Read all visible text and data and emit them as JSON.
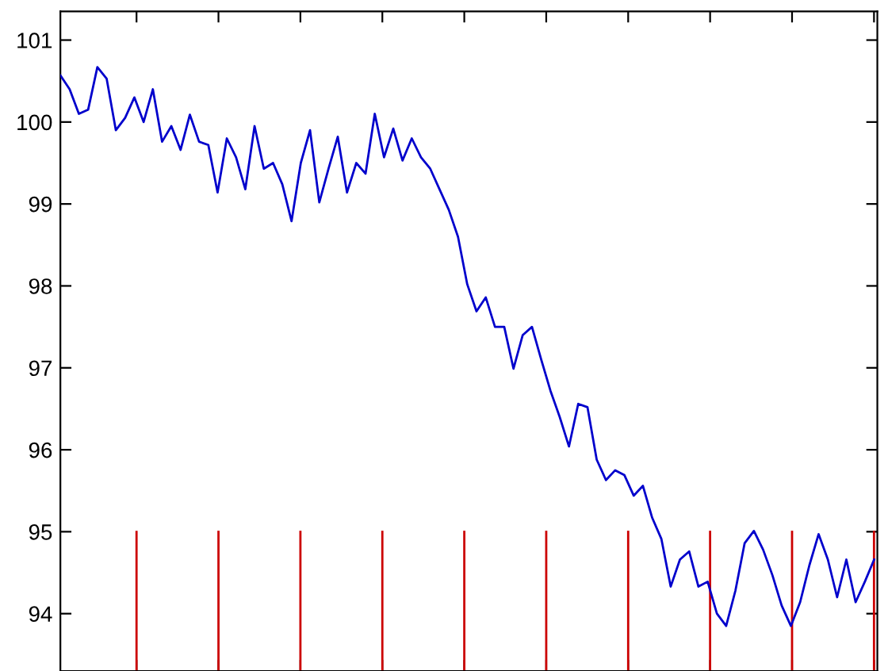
{
  "chart_data": {
    "type": "line",
    "ylim": [
      93.3,
      101.35
    ],
    "yticks": [
      94,
      95,
      96,
      97,
      98,
      99,
      100,
      101
    ],
    "tick_labels": "y",
    "categories": [
      null,
      null,
      null,
      null,
      null,
      null,
      null,
      null,
      null,
      null,
      null,
      null,
      null,
      null,
      null,
      null,
      null,
      null,
      null,
      null,
      null,
      null,
      null,
      null,
      null,
      null,
      null,
      null,
      null,
      null,
      null,
      null,
      null,
      null,
      null,
      null,
      null,
      null,
      null,
      null,
      null,
      null,
      null,
      null,
      null,
      null,
      null,
      null,
      null,
      null,
      null,
      null,
      null,
      null,
      null,
      null,
      null,
      null,
      null,
      null,
      null,
      null,
      null,
      null,
      null,
      null,
      null,
      null,
      null,
      null,
      null,
      null,
      null,
      null,
      null,
      null,
      null,
      null,
      null,
      null,
      null,
      null,
      null,
      null,
      null,
      null,
      null,
      null,
      null
    ],
    "series": [
      {
        "color": "#0000cc",
        "values": [
          100.57,
          100.4,
          100.1,
          100.15,
          100.67,
          100.53,
          99.9,
          100.05,
          100.3,
          100.0,
          100.4,
          99.76,
          99.95,
          99.66,
          100.09,
          99.76,
          99.72,
          99.14,
          99.8,
          99.57,
          99.18,
          99.95,
          99.43,
          99.5,
          99.24,
          98.79,
          99.5,
          99.9,
          99.02,
          99.43,
          99.82,
          99.14,
          99.5,
          99.37,
          100.1,
          99.57,
          99.92,
          99.53,
          99.8,
          99.57,
          99.43,
          99.18,
          98.93,
          98.6,
          98.02,
          97.69,
          97.86,
          97.5,
          97.5,
          96.99,
          97.4,
          97.5,
          97.1,
          96.72,
          96.4,
          96.04,
          96.56,
          96.52,
          95.88,
          95.63,
          95.75,
          95.69,
          95.44,
          95.56,
          95.17,
          94.91,
          94.33,
          94.66,
          94.76,
          94.33,
          94.39,
          94.0,
          93.85,
          94.28,
          94.86,
          95.01,
          94.78,
          94.47,
          94.1,
          93.85,
          94.14,
          94.59,
          94.97,
          94.66,
          94.2,
          94.66,
          94.14,
          94.39,
          94.66
        ]
      }
    ]
  }
}
